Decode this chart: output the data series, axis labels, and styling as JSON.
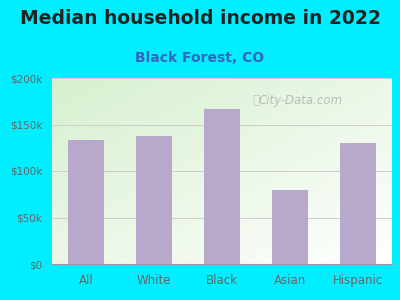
{
  "title": "Median household income in 2022",
  "subtitle": "Black Forest, CO",
  "categories": [
    "All",
    "White",
    "Black",
    "Asian",
    "Hispanic"
  ],
  "values": [
    133000,
    138000,
    167000,
    80000,
    130000
  ],
  "bar_color": "#b8a8cc",
  "title_fontsize": 13.5,
  "subtitle_fontsize": 10,
  "subtitle_color": "#3366bb",
  "title_color": "#222222",
  "tick_color": "#666666",
  "bg_outer": "#00eeff",
  "bg_plot_topleft": "#d8efd0",
  "bg_plot_white": "#ffffff",
  "ylim": [
    0,
    200000
  ],
  "yticks": [
    0,
    50000,
    100000,
    150000,
    200000
  ],
  "ytick_labels": [
    "$0",
    "$50k",
    "$100k",
    "$150k",
    "$200k"
  ],
  "watermark": "City-Data.com"
}
